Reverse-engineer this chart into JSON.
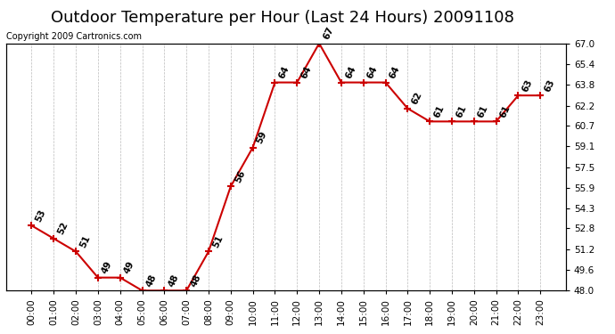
{
  "title": "Outdoor Temperature per Hour (Last 24 Hours) 20091108",
  "copyright_text": "Copyright 2009 Cartronics.com",
  "hours": [
    "00:00",
    "01:00",
    "02:00",
    "03:00",
    "04:00",
    "05:00",
    "06:00",
    "07:00",
    "08:00",
    "09:00",
    "10:00",
    "11:00",
    "12:00",
    "13:00",
    "14:00",
    "15:00",
    "16:00",
    "17:00",
    "18:00",
    "19:00",
    "20:00",
    "21:00",
    "22:00",
    "23:00"
  ],
  "temps": [
    53,
    52,
    51,
    49,
    49,
    48,
    48,
    48,
    51,
    56,
    59,
    64,
    64,
    67,
    64,
    64,
    64,
    62,
    61,
    61,
    61,
    61,
    63,
    63
  ],
  "line_color": "#cc0000",
  "marker": "+",
  "marker_size": 6,
  "marker_lw": 1.5,
  "ylim": [
    48.0,
    67.0
  ],
  "yticks_right": [
    48.0,
    49.6,
    51.2,
    52.8,
    54.3,
    55.9,
    57.5,
    59.1,
    60.7,
    62.2,
    63.8,
    65.4,
    67.0
  ],
  "bg_color": "#ffffff",
  "grid_color": "#bbbbbb",
  "title_fontsize": 13,
  "tick_fontsize": 7.5,
  "annotation_fontsize": 7.5,
  "copyright_fontsize": 7
}
